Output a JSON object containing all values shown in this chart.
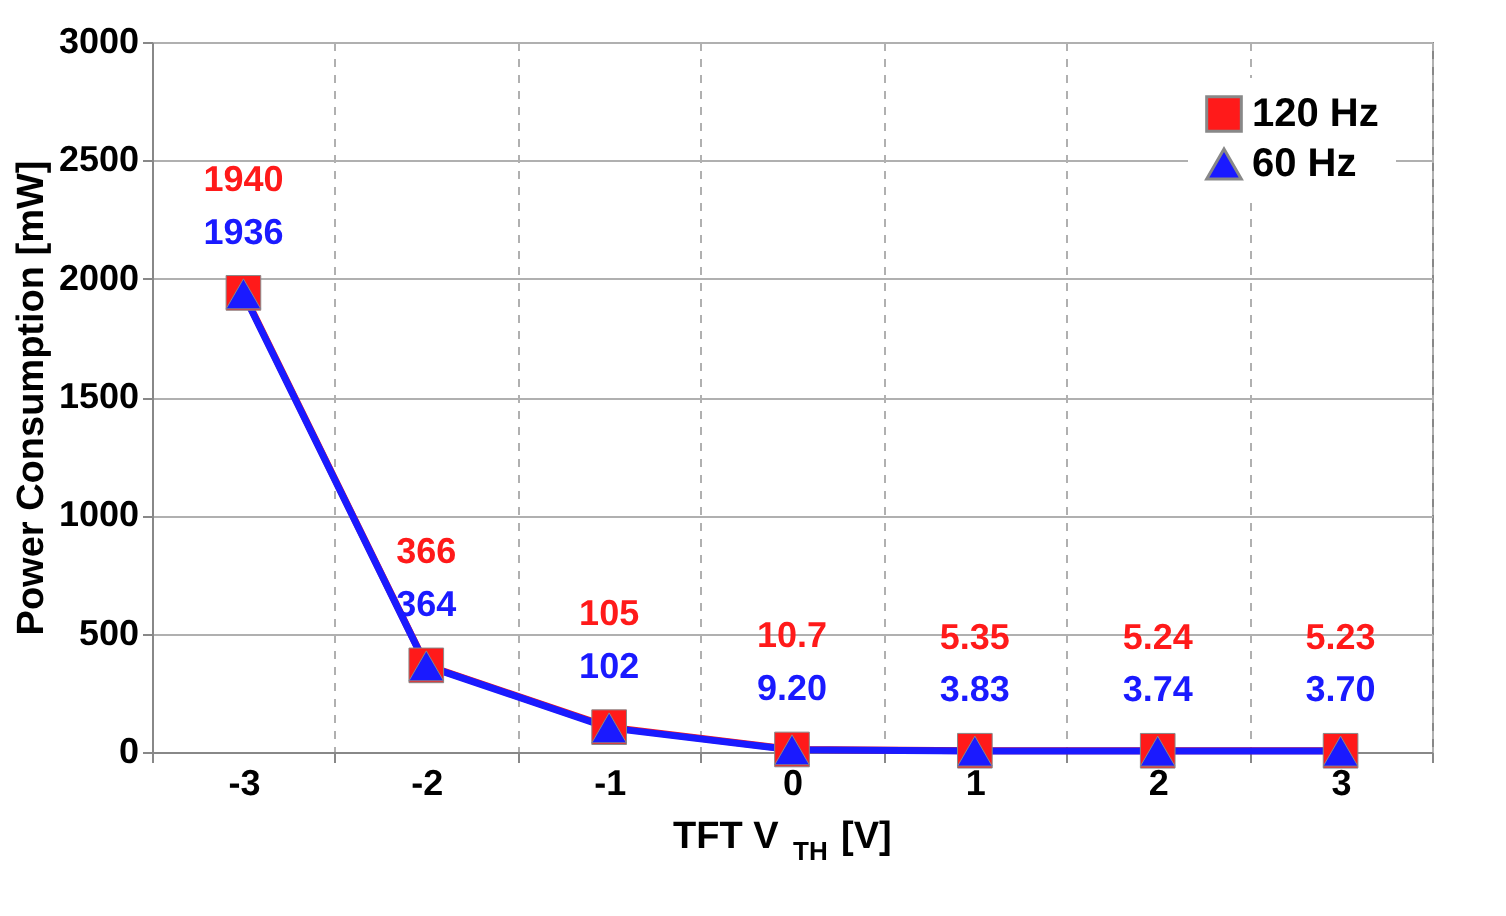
{
  "chart_data": {
    "type": "line",
    "xlabel": "TFT V$_{TH}$ [V]",
    "ylabel": "Power Consumption [mW]",
    "categories": [
      "-3",
      "-2",
      "-1",
      "0",
      "1",
      "2",
      "3"
    ],
    "ylim": [
      0,
      3000
    ],
    "yticks": [
      0,
      500,
      1000,
      1500,
      2000,
      2500,
      3000
    ],
    "grid": true,
    "legend": "top right",
    "line_style": "solid",
    "series": [
      {
        "name": "120 Hz",
        "color": "#ff1a1a",
        "marker": "square",
        "values": [
          1940,
          366,
          105,
          10.7,
          5.35,
          5.24,
          5.23
        ],
        "value_labels": [
          "1940",
          "366",
          "105",
          "10.7",
          "5.35",
          "5.24",
          "5.23"
        ]
      },
      {
        "name": "60 Hz",
        "color": "#1a1aff",
        "marker": "triangle",
        "values": [
          1936,
          364,
          102,
          9.2,
          3.83,
          3.74,
          3.7
        ],
        "value_labels": [
          "1936",
          "364",
          "102",
          "9.20",
          "3.83",
          "3.74",
          "3.70"
        ]
      }
    ]
  }
}
